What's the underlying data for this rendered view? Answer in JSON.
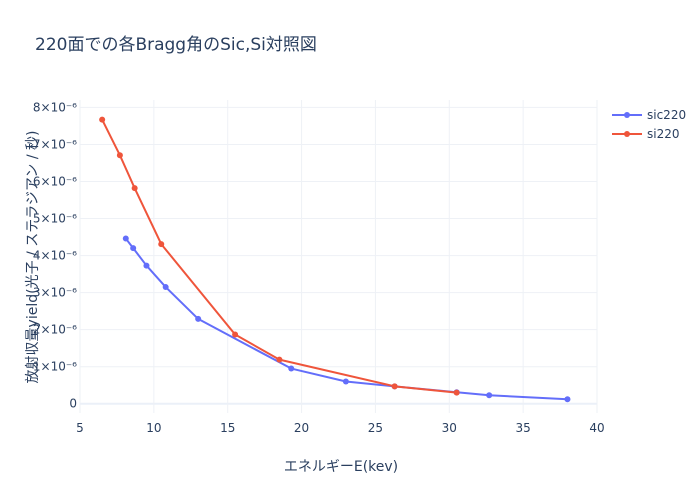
{
  "chart_data": {
    "type": "line",
    "title": "220面での各Bragg角のSic,Si対照図",
    "xlabel": "エネルギーE(kev)",
    "ylabel": "放射収量yield(光子 / ステラジアン / 秒)",
    "xlim": [
      5,
      40
    ],
    "ylim": [
      -2.5e-07,
      8.2e-06
    ],
    "x_ticks": [
      5,
      10,
      15,
      20,
      25,
      30,
      35,
      40
    ],
    "y_ticks": [
      0,
      1e-06,
      2e-06,
      3e-06,
      4e-06,
      5e-06,
      6e-06,
      7e-06,
      8e-06
    ],
    "y_tick_labels": [
      "0",
      "1×10⁻⁶",
      "2×10⁻⁶",
      "3×10⁻⁶",
      "4×10⁻⁶",
      "5×10⁻⁶",
      "6×10⁻⁶",
      "7×10⁻⁶",
      "8×10⁻⁶"
    ],
    "grid": true,
    "legend_position": "top-right",
    "series": [
      {
        "name": "sic220",
        "color": "#636efa",
        "x": [
          8.1,
          8.6,
          9.5,
          10.8,
          13.0,
          19.3,
          23.0,
          26.3,
          30.5,
          32.7,
          38.0
        ],
        "y": [
          4.46e-06,
          4.2e-06,
          3.73e-06,
          3.15e-06,
          2.29e-06,
          9.5e-07,
          6e-07,
          4.7e-07,
          3.1e-07,
          2.3e-07,
          1.2e-07
        ]
      },
      {
        "name": "si220",
        "color": "#ef553b",
        "x": [
          6.5,
          7.7,
          8.7,
          10.5,
          15.5,
          18.5,
          26.3,
          30.5
        ],
        "y": [
          7.67e-06,
          6.71e-06,
          5.82e-06,
          4.31e-06,
          1.87e-06,
          1.19e-06,
          4.7e-07,
          3e-07
        ]
      }
    ]
  }
}
